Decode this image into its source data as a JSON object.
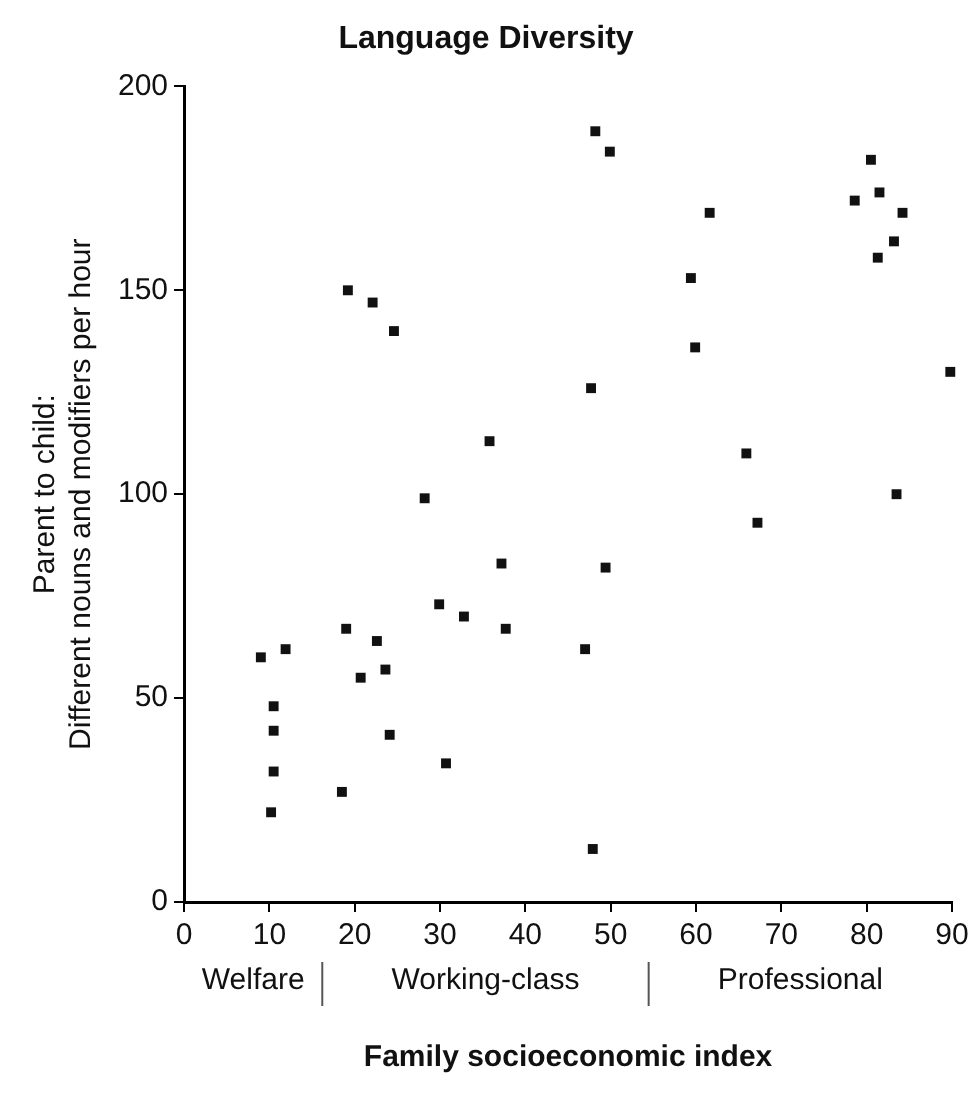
{
  "chart_data": {
    "type": "scatter",
    "title": "Language Diversity",
    "xlabel": "Family socioeconomic index",
    "ylabel": "Parent to child:\nDifferent nouns and modifiers per hour",
    "annotations": [
      "Welfare",
      "Working-class",
      "Professional"
    ],
    "marker": "square",
    "grid": false,
    "legend": false,
    "xlim": [
      0,
      90
    ],
    "xticks": [
      0,
      10,
      20,
      30,
      40,
      50,
      60,
      70,
      80,
      90
    ],
    "ylim": [
      0,
      200
    ],
    "yticks": [
      0,
      50,
      100,
      150,
      200
    ],
    "series": [
      {
        "color": "#111111",
        "x": [
          19.2,
          22.1,
          24.6,
          35.8,
          28.2,
          37.2,
          29.9,
          32.8,
          37.7,
          19,
          22.6,
          23.6,
          20.7,
          9,
          11.9,
          10.5,
          10.5,
          10.5,
          10.2,
          24.1,
          18.5,
          30.7,
          48.2,
          49.9,
          61.6,
          59.4,
          59.9,
          47.7,
          65.9,
          67.2,
          49.4,
          47,
          47.9,
          80.5,
          78.6,
          81.5,
          84.2,
          83.2,
          81.3,
          89.8,
          83.5
        ],
        "values": [
          150,
          147,
          140,
          113,
          99,
          83,
          73,
          70,
          67,
          67,
          64,
          57,
          55,
          60,
          62,
          48,
          42,
          32,
          22,
          41,
          27,
          34,
          189,
          184,
          169,
          153,
          136,
          126,
          110,
          93,
          82,
          62,
          13,
          182,
          172,
          174,
          169,
          162,
          158,
          130,
          100
        ]
      }
    ]
  }
}
